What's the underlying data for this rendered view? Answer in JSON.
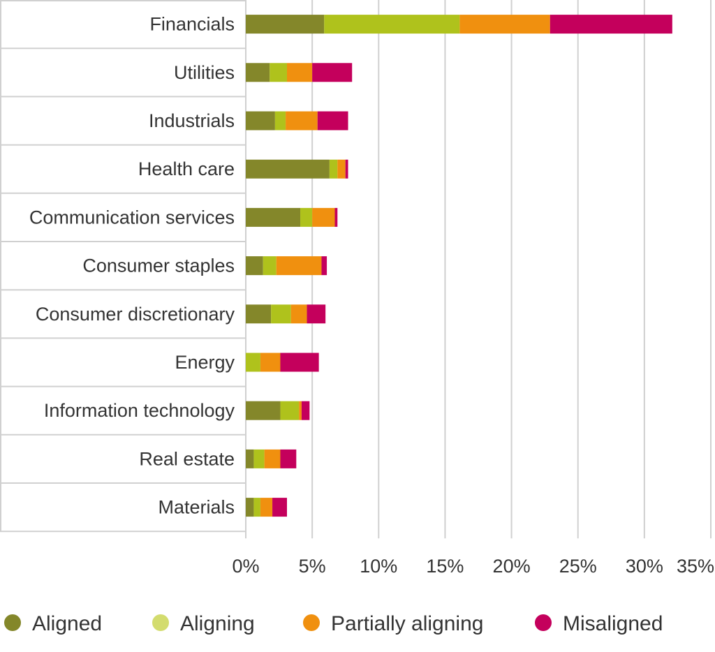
{
  "chart_data": {
    "type": "bar",
    "orientation": "horizontal",
    "stacked": true,
    "categories": [
      "Financials",
      "Utilities",
      "Industrials",
      "Health care",
      "Communication services",
      "Consumer staples",
      "Consumer discretionary",
      "Energy",
      "Information technology",
      "Real estate",
      "Materials"
    ],
    "series": [
      {
        "name": "Aligned",
        "color": "#84872a",
        "values": [
          5.9,
          1.8,
          2.2,
          6.3,
          4.1,
          1.3,
          1.9,
          0.0,
          2.6,
          0.6,
          0.6
        ]
      },
      {
        "name": "Aligning",
        "color": "#afc21c",
        "values": [
          10.2,
          1.3,
          0.8,
          0.6,
          0.9,
          1.0,
          1.5,
          1.1,
          1.4,
          0.8,
          0.5
        ]
      },
      {
        "name": "Partially aligning",
        "color": "#f0900f",
        "values": [
          6.8,
          1.9,
          2.4,
          0.6,
          1.7,
          3.4,
          1.2,
          1.5,
          0.2,
          1.2,
          0.9
        ]
      },
      {
        "name": "Misaligned",
        "color": "#c4005c",
        "values": [
          9.2,
          3.0,
          2.3,
          0.2,
          0.2,
          0.4,
          1.4,
          2.9,
          0.6,
          1.2,
          1.1
        ]
      }
    ],
    "xaxis": {
      "min": 0,
      "max": 35,
      "ticks": [
        0,
        5,
        10,
        15,
        20,
        25,
        30,
        35
      ],
      "tick_labels": [
        "0%",
        "5%",
        "10%",
        "15%",
        "20%",
        "25%",
        "30%",
        "35%"
      ]
    },
    "title": "",
    "xlabel": "",
    "ylabel": "",
    "grid": "vertical",
    "legend_position": "bottom",
    "legend_marker_colors": [
      "#84872a",
      "#d3dc6e",
      "#f0900f",
      "#c4005c"
    ]
  }
}
